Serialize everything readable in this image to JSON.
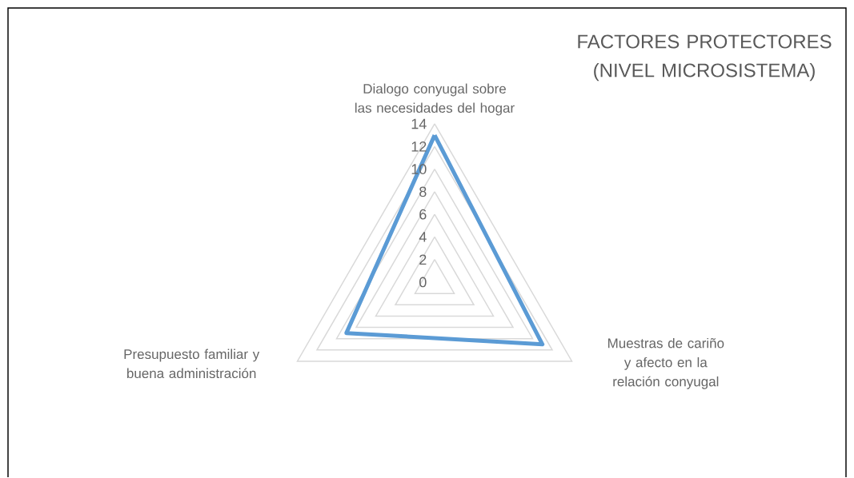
{
  "chart_data": {
    "type": "radar",
    "title": "FACTORES PROTECTORES (NIVEL MICROSISTEMA)",
    "categories": [
      "Dialogo conyugal sobre las necesidades del hogar",
      "Muestras de cariño y afecto en la relación conyugal",
      "Presupuesto familiar y buena administración"
    ],
    "series": [
      {
        "color": "#5b9bd5",
        "values": [
          13,
          11,
          9
        ]
      }
    ],
    "ylim": [
      0,
      14
    ],
    "yticks": [
      {
        "value": 0,
        "label": "0"
      },
      2,
      4,
      6,
      8,
      10,
      12,
      14
    ],
    "grid": true,
    "marker": "none",
    "line_style": "solid"
  }
}
